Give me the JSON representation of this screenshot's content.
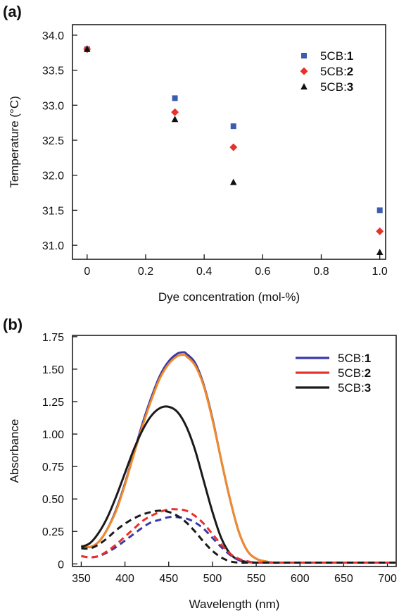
{
  "chart_data": [
    {
      "panel_label": "(a)",
      "type": "scatter",
      "xlabel": "Dye concentration (mol-%)",
      "ylabel": "Temperature (°C)",
      "xlim": [
        -0.05,
        1.02
      ],
      "ylim": [
        30.8,
        34.15
      ],
      "x_ticks": [
        0,
        0.2,
        0.4,
        0.6,
        0.8,
        1.0
      ],
      "x_tick_labels": [
        "0",
        "0.2",
        "0.4",
        "0.6",
        "0.8",
        "1.0"
      ],
      "y_ticks": [
        31.0,
        31.5,
        32.0,
        32.5,
        33.0,
        33.5,
        34.0
      ],
      "y_tick_labels": [
        "31.0",
        "31.5",
        "32.0",
        "32.5",
        "33.0",
        "33.5",
        "34.0"
      ],
      "grid": false,
      "legend_position": "top-right",
      "series": [
        {
          "name": "5CB:",
          "name_suffix": "1",
          "marker": "square",
          "color": "#3a5db0",
          "x": [
            0,
            0.3,
            0.5,
            1.0
          ],
          "y": [
            33.8,
            33.1,
            32.7,
            31.5
          ]
        },
        {
          "name": "5CB:",
          "name_suffix": "2",
          "marker": "diamond",
          "color": "#e8312a",
          "x": [
            0,
            0.3,
            0.5,
            1.0
          ],
          "y": [
            33.8,
            32.9,
            32.4,
            31.2
          ]
        },
        {
          "name": "5CB:",
          "name_suffix": "3",
          "marker": "triangle",
          "color": "#111111",
          "x": [
            0,
            0.3,
            0.5,
            1.0
          ],
          "y": [
            33.8,
            32.8,
            31.9,
            30.9
          ]
        }
      ]
    },
    {
      "panel_label": "(b)",
      "type": "line",
      "xlabel": "Wavelength (nm)",
      "ylabel": "Absorbance",
      "xlim": [
        340,
        710
      ],
      "ylim": [
        -0.02,
        1.76
      ],
      "x_ticks": [
        350,
        400,
        450,
        500,
        550,
        600,
        650,
        700
      ],
      "x_tick_labels": [
        "350",
        "400",
        "450",
        "500",
        "550",
        "600",
        "650",
        "700"
      ],
      "y_ticks": [
        0,
        0.25,
        0.5,
        0.75,
        1.0,
        1.25,
        1.5,
        1.75
      ],
      "y_tick_labels": [
        "0",
        "0.25",
        "0.50",
        "0.75",
        "1.00",
        "1.25",
        "1.50",
        "1.75"
      ],
      "grid": false,
      "legend_position": "top-right",
      "legend": [
        {
          "name": "5CB:",
          "name_suffix": "1",
          "color": "#3b3aa8"
        },
        {
          "name": "5CB:",
          "name_suffix": "2",
          "color": "#e8312a"
        },
        {
          "name": "5CB:",
          "name_suffix": "3",
          "color": "#1a1a1a"
        }
      ],
      "series": [
        {
          "name": "5CB:1 solid",
          "color": "#3b3aa8",
          "style": "solid",
          "x": [
            350,
            360,
            370,
            380,
            390,
            400,
            410,
            420,
            430,
            440,
            450,
            460,
            467,
            470,
            480,
            490,
            500,
            510,
            520,
            530,
            540,
            550,
            560,
            570,
            580,
            600,
            650,
            710
          ],
          "y": [
            0.14,
            0.13,
            0.17,
            0.27,
            0.42,
            0.62,
            0.85,
            1.08,
            1.28,
            1.45,
            1.56,
            1.62,
            1.63,
            1.62,
            1.55,
            1.38,
            1.12,
            0.8,
            0.5,
            0.25,
            0.1,
            0.04,
            0.02,
            0.01,
            0.01,
            0.01,
            0.01,
            0.01
          ]
        },
        {
          "name": "5CB:2 solid",
          "color": "#f08a2a",
          "style": "solid",
          "x": [
            350,
            360,
            370,
            380,
            390,
            400,
            410,
            420,
            430,
            440,
            450,
            460,
            467,
            470,
            480,
            490,
            500,
            510,
            520,
            530,
            540,
            550,
            560,
            570,
            580,
            600,
            650,
            710
          ],
          "y": [
            0.14,
            0.13,
            0.17,
            0.27,
            0.41,
            0.61,
            0.84,
            1.06,
            1.26,
            1.43,
            1.54,
            1.6,
            1.61,
            1.6,
            1.53,
            1.37,
            1.11,
            0.8,
            0.5,
            0.25,
            0.1,
            0.04,
            0.02,
            0.01,
            0.01,
            0.01,
            0.01,
            0.01
          ]
        },
        {
          "name": "5CB:3 solid",
          "color": "#1a1a1a",
          "style": "solid",
          "x": [
            350,
            360,
            370,
            380,
            390,
            400,
            410,
            420,
            430,
            440,
            450,
            460,
            470,
            480,
            490,
            500,
            510,
            520,
            530,
            540,
            550,
            560,
            570,
            580,
            600,
            650,
            710
          ],
          "y": [
            0.13,
            0.16,
            0.24,
            0.36,
            0.52,
            0.7,
            0.88,
            1.03,
            1.14,
            1.2,
            1.21,
            1.17,
            1.06,
            0.88,
            0.64,
            0.4,
            0.2,
            0.08,
            0.03,
            0.015,
            0.01,
            0.01,
            0.01,
            0.01,
            0.01,
            0.01,
            0.01
          ]
        },
        {
          "name": "5CB:1 dashed",
          "color": "#3b3aa8",
          "style": "dashed",
          "x": [
            350,
            360,
            370,
            380,
            390,
            400,
            410,
            420,
            430,
            440,
            450,
            460,
            470,
            480,
            490,
            500,
            510,
            520,
            530,
            540,
            550,
            560,
            570,
            600,
            650,
            710
          ],
          "y": [
            0.06,
            0.05,
            0.06,
            0.09,
            0.13,
            0.18,
            0.23,
            0.28,
            0.32,
            0.34,
            0.36,
            0.36,
            0.35,
            0.32,
            0.27,
            0.2,
            0.13,
            0.07,
            0.03,
            0.015,
            0.01,
            0.01,
            0.01,
            0.01,
            0.01,
            0.01
          ]
        },
        {
          "name": "5CB:2 dashed",
          "color": "#e8312a",
          "style": "dashed",
          "x": [
            350,
            360,
            370,
            380,
            390,
            400,
            410,
            420,
            430,
            440,
            450,
            460,
            470,
            480,
            490,
            500,
            510,
            520,
            530,
            540,
            550,
            560,
            570,
            600,
            650,
            710
          ],
          "y": [
            0.06,
            0.05,
            0.06,
            0.1,
            0.15,
            0.21,
            0.27,
            0.33,
            0.37,
            0.4,
            0.42,
            0.42,
            0.41,
            0.37,
            0.31,
            0.23,
            0.15,
            0.08,
            0.04,
            0.02,
            0.01,
            0.01,
            0.01,
            0.01,
            0.01,
            0.01
          ]
        },
        {
          "name": "5CB:3 dashed",
          "color": "#1a1a1a",
          "style": "dashed",
          "x": [
            350,
            360,
            370,
            380,
            390,
            400,
            410,
            420,
            430,
            440,
            450,
            460,
            470,
            480,
            490,
            500,
            510,
            520,
            530,
            540,
            550,
            560,
            570,
            600,
            650,
            710
          ],
          "y": [
            0.12,
            0.12,
            0.15,
            0.2,
            0.26,
            0.31,
            0.35,
            0.38,
            0.4,
            0.41,
            0.4,
            0.37,
            0.32,
            0.25,
            0.17,
            0.1,
            0.05,
            0.02,
            0.01,
            0.01,
            0.01,
            0.01,
            0.01,
            0.01,
            0.01,
            0.01
          ]
        }
      ]
    }
  ]
}
